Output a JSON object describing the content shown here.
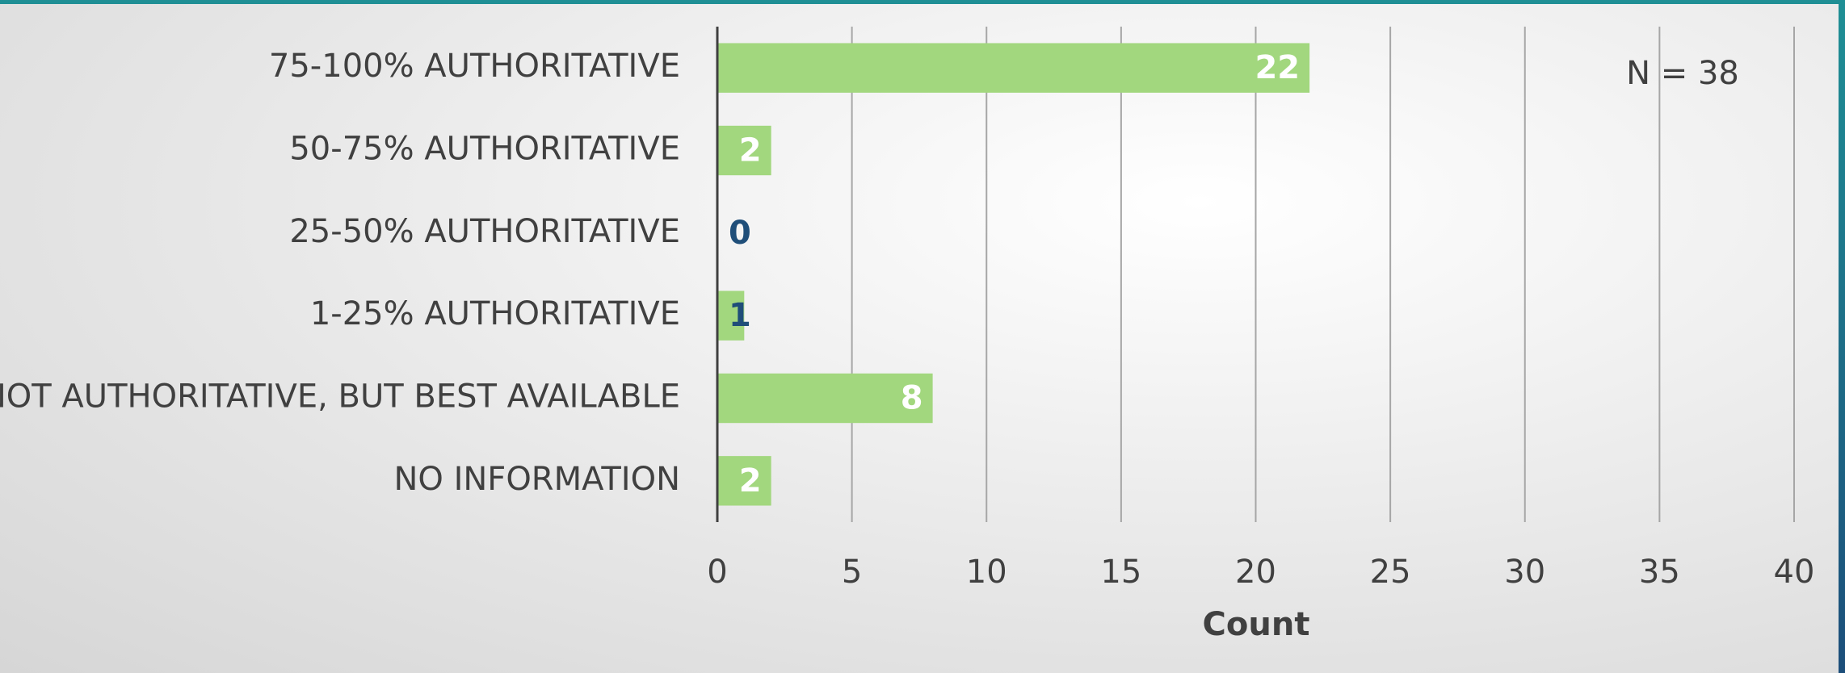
{
  "chart_data": {
    "type": "bar",
    "orientation": "horizontal",
    "categories": [
      "75-100% AUTHORITATIVE",
      "50-75% AUTHORITATIVE",
      "25-50% AUTHORITATIVE",
      "1-25% AUTHORITATIVE",
      "NOT AUTHORITATIVE, BUT BEST AVAILABLE",
      "NO INFORMATION"
    ],
    "values": [
      22,
      2,
      0,
      1,
      8,
      2
    ],
    "color": "#a2d77e",
    "value_label_colors": [
      "#ffffff",
      "#ffffff",
      "#1f4e79",
      "#1f4e79",
      "#ffffff",
      "#ffffff"
    ],
    "xlabel": "Count",
    "annotation": "N = 38",
    "xlim": [
      0,
      40
    ],
    "xticks": [
      0,
      5,
      10,
      15,
      20,
      25,
      30,
      35,
      40
    ],
    "grid": true
  }
}
